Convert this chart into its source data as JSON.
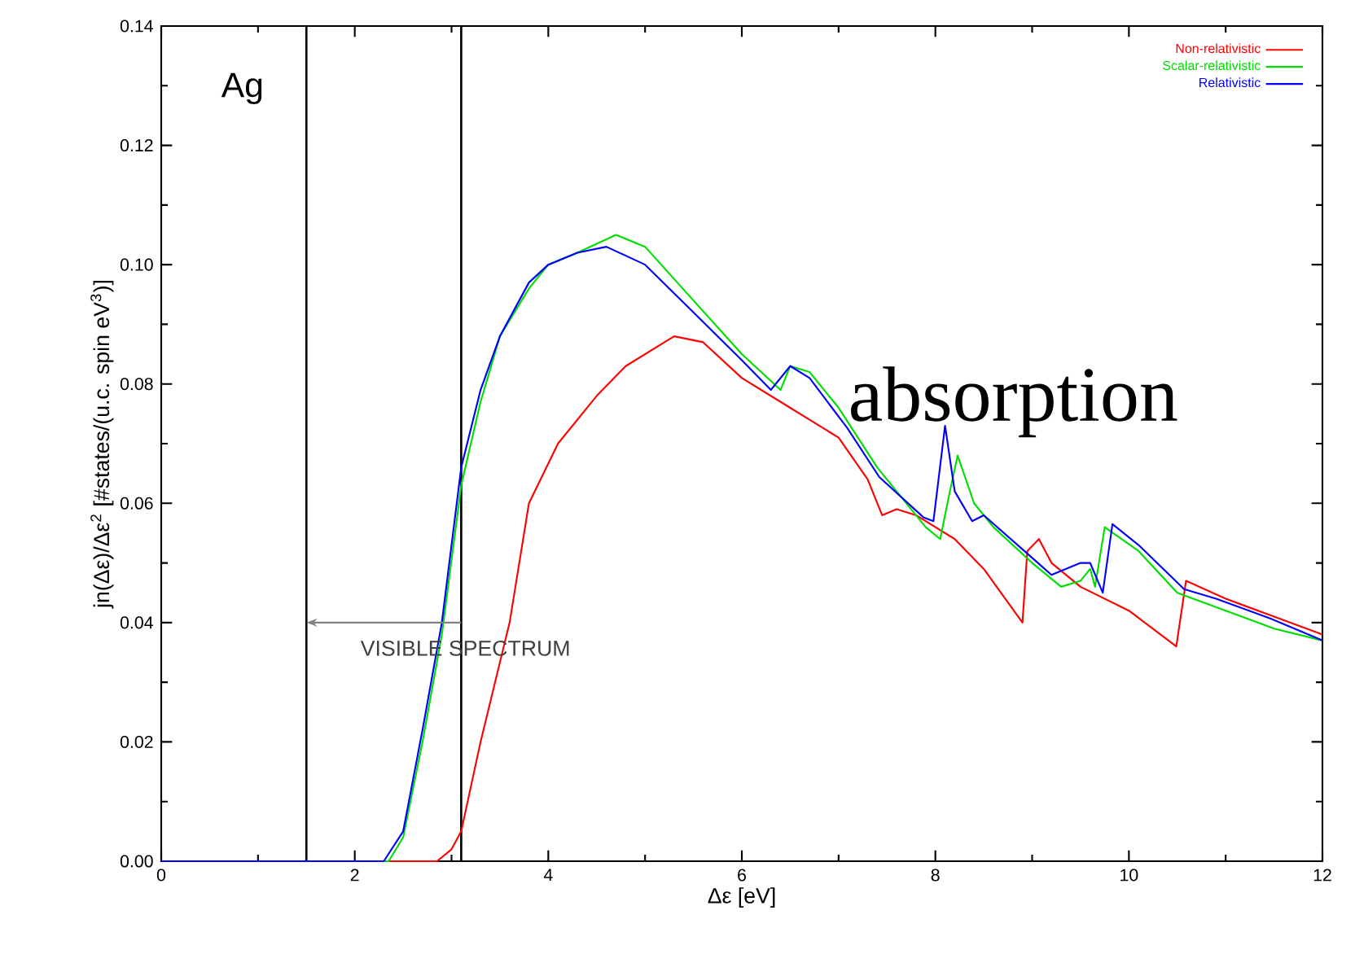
{
  "chart_data": {
    "type": "line",
    "xlabel": "Δε [eV]",
    "ylabel": "jn(Δε)/Δε$^{2}$ [#states/(u.c. spin eV$^{3}$)]",
    "xlim": [
      0,
      12
    ],
    "ylim": [
      0,
      0.14
    ],
    "xticks": [
      0,
      2,
      4,
      6,
      8,
      10,
      12
    ],
    "yticks": [
      {
        "value": 0,
        "label": "0.00"
      },
      {
        "value": 0.02,
        "label": "0.02"
      },
      {
        "value": 0.04,
        "label": "0.04"
      },
      {
        "value": 0.06,
        "label": "0.06"
      },
      {
        "value": 0.08,
        "label": "0.08"
      },
      {
        "value": 0.1,
        "label": "0.10"
      },
      {
        "value": 0.12,
        "label": "0.12"
      },
      {
        "value": 0.14,
        "label": "0.14"
      }
    ],
    "grid": false,
    "legend": "top right",
    "ref_lines": [
      {
        "axis": "x",
        "value": 1.5,
        "color": "#000000"
      },
      {
        "axis": "x",
        "value": 3.1,
        "color": "#000000"
      }
    ],
    "annotations": [
      "Ag",
      "VISIBLE SPECTRUM",
      "absorption"
    ],
    "series": [
      {
        "name": "Non-relativistic",
        "color": "#ff0000",
        "x": [
          0,
          2.85,
          3.0,
          3.1,
          3.3,
          3.6,
          3.8,
          4.1,
          4.5,
          4.8,
          5.3,
          5.6,
          6.0,
          6.5,
          7.0,
          7.3,
          7.45,
          7.6,
          7.8,
          8.2,
          8.5,
          8.9,
          8.95,
          9.07,
          9.2,
          9.5,
          10.0,
          10.49,
          10.59,
          11.0,
          11.5,
          12.0
        ],
        "values": [
          0,
          0,
          0.002,
          0.005,
          0.02,
          0.04,
          0.06,
          0.07,
          0.078,
          0.083,
          0.088,
          0.087,
          0.081,
          0.076,
          0.071,
          0.064,
          0.058,
          0.059,
          0.058,
          0.054,
          0.049,
          0.04,
          0.052,
          0.054,
          0.05,
          0.046,
          0.042,
          0.036,
          0.047,
          0.044,
          0.041,
          0.038
        ]
      },
      {
        "name": "Scalar-relativistic",
        "color": "#00dd00",
        "x": [
          0,
          2.35,
          2.5,
          2.7,
          2.9,
          3.1,
          3.3,
          3.5,
          3.8,
          4.0,
          4.3,
          4.7,
          5.0,
          5.5,
          6.0,
          6.4,
          6.5,
          6.7,
          7.0,
          7.4,
          7.9,
          8.05,
          8.15,
          8.23,
          8.4,
          8.6,
          9.0,
          9.3,
          9.5,
          9.6,
          9.65,
          9.75,
          10.1,
          10.5,
          11.0,
          11.5,
          12.0
        ],
        "values": [
          0,
          0,
          0.004,
          0.02,
          0.038,
          0.063,
          0.077,
          0.088,
          0.096,
          0.1,
          0.102,
          0.105,
          0.103,
          0.094,
          0.085,
          0.079,
          0.083,
          0.082,
          0.076,
          0.066,
          0.056,
          0.054,
          0.062,
          0.068,
          0.06,
          0.056,
          0.05,
          0.046,
          0.047,
          0.049,
          0.046,
          0.056,
          0.052,
          0.045,
          0.042,
          0.039,
          0.037
        ]
      },
      {
        "name": "Relativistic",
        "color": "#0000ff",
        "x": [
          0,
          2.3,
          2.5,
          2.7,
          2.9,
          3.1,
          3.3,
          3.5,
          3.8,
          4.0,
          4.3,
          4.6,
          5.0,
          5.5,
          6.0,
          6.3,
          6.5,
          6.7,
          7.09,
          7.42,
          7.88,
          7.98,
          8.1,
          8.2,
          8.38,
          8.5,
          9.2,
          9.5,
          9.6,
          9.73,
          9.83,
          10.1,
          10.57,
          10.9,
          11.46,
          12.0
        ],
        "values": [
          0,
          0,
          0.005,
          0.022,
          0.04,
          0.066,
          0.079,
          0.088,
          0.097,
          0.1,
          0.102,
          0.103,
          0.1,
          0.092,
          0.084,
          0.079,
          0.083,
          0.081,
          0.0726,
          0.0644,
          0.0576,
          0.057,
          0.073,
          0.062,
          0.057,
          0.058,
          0.048,
          0.05,
          0.05,
          0.045,
          0.0565,
          0.053,
          0.0456,
          0.044,
          0.0407,
          0.037
        ]
      }
    ]
  }
}
